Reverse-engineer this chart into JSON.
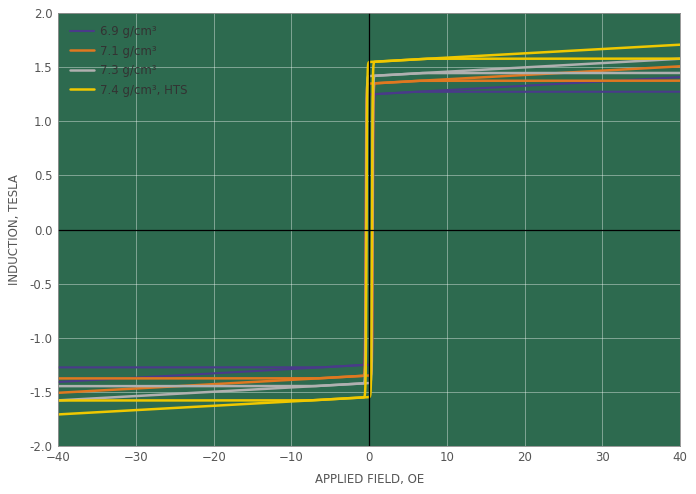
{
  "title": "",
  "xlabel": "APPLIED FIELD, OE",
  "ylabel": "INDUCTION, TESLA",
  "xlim": [
    -40,
    40
  ],
  "ylim": [
    -2.0,
    2.0
  ],
  "xticks": [
    -40,
    -30,
    -20,
    -10,
    0,
    10,
    20,
    30,
    40
  ],
  "yticks": [
    -2.0,
    -1.5,
    -1.0,
    -0.5,
    0.0,
    0.5,
    1.0,
    1.5,
    2.0
  ],
  "background_color": "#2d6a4f",
  "grid_color": "#ffffff",
  "tick_label_color": "#555555",
  "axis_label_color": "#555555",
  "figsize": [
    6.96,
    4.94
  ],
  "dpi": 100,
  "series": [
    {
      "label": "6.9 g/cm³",
      "color": "#4a3a8a",
      "linewidth": 1.5,
      "bsat": 1.25,
      "hc": 0.5,
      "slope": 0.004,
      "sharpness": 18.0
    },
    {
      "label": "7.1 g/cm³",
      "color": "#e07820",
      "linewidth": 1.8,
      "bsat": 1.35,
      "hc": 0.45,
      "slope": 0.004,
      "sharpness": 18.0
    },
    {
      "label": "7.3 g/cm³",
      "color": "#b0b0b0",
      "linewidth": 1.8,
      "bsat": 1.42,
      "hc": 0.4,
      "slope": 0.004,
      "sharpness": 18.0
    },
    {
      "label": "7.4 g/cm³, HTS",
      "color": "#f0c800",
      "linewidth": 1.8,
      "bsat": 1.55,
      "hc": 0.35,
      "slope": 0.004,
      "sharpness": 18.0
    }
  ]
}
